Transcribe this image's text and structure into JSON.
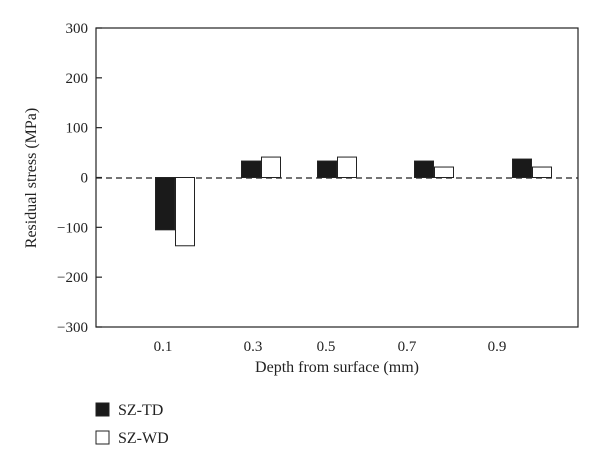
{
  "chart_data": {
    "type": "bar",
    "xlabel": "Depth from surface (mm)",
    "ylabel": "Residual stress (MPa)",
    "ylim": [
      -300,
      300
    ],
    "yticks": [
      300,
      200,
      100,
      0,
      -100,
      -200,
      -300
    ],
    "ytick_labels": [
      "300",
      "200",
      "100",
      "0",
      "−100",
      "−200",
      "−300"
    ],
    "categories": [
      "0.1",
      "0.3",
      "0.5",
      "0.7",
      "0.9"
    ],
    "series": [
      {
        "name": "SZ-TD",
        "color": "#1a1a1a",
        "values": [
          -105,
          33,
          33,
          33,
          37
        ]
      },
      {
        "name": "SZ-WD",
        "color": "#ffffff",
        "values": [
          -137,
          41,
          41,
          21,
          21
        ]
      }
    ],
    "grid": false,
    "zero_line": "dashed",
    "legend_position": "bottom-left"
  }
}
